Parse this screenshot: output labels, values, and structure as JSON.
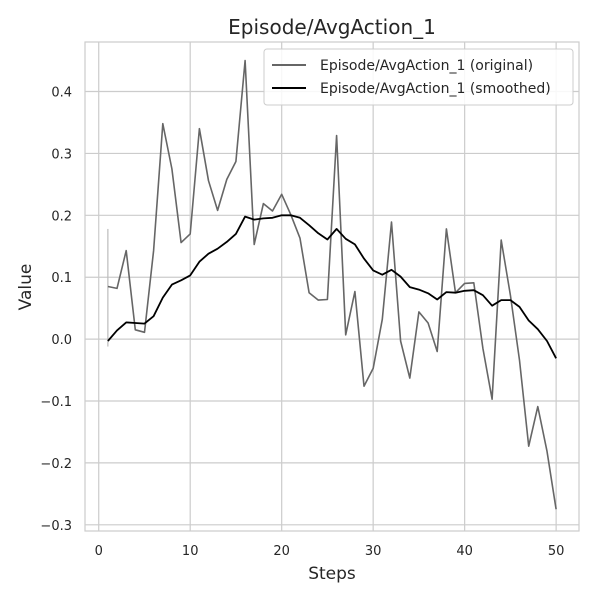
{
  "chart_data": {
    "type": "line",
    "title": "Episode/AvgAction_1",
    "xlabel": "Steps",
    "ylabel": "Value",
    "xlim": [
      -1.5,
      52.5
    ],
    "ylim": [
      -0.31,
      0.48
    ],
    "xticks": [
      0,
      10,
      20,
      30,
      40,
      50
    ],
    "yticks": [
      -0.3,
      -0.2,
      -0.1,
      0.0,
      0.1,
      0.2,
      0.3,
      0.4
    ],
    "ytick_labels": [
      "−0.3",
      "−0.2",
      "−0.1",
      "0.0",
      "0.1",
      "0.2",
      "0.3",
      "0.4"
    ],
    "xtick_labels": [
      "0",
      "10",
      "20",
      "30",
      "40",
      "50"
    ],
    "grid": true,
    "legend_position": "top-right",
    "x": [
      1,
      2,
      3,
      4,
      5,
      6,
      7,
      8,
      9,
      10,
      11,
      12,
      13,
      14,
      15,
      16,
      17,
      18,
      19,
      20,
      21,
      22,
      23,
      24,
      25,
      26,
      27,
      28,
      29,
      30,
      31,
      32,
      33,
      34,
      35,
      36,
      37,
      38,
      39,
      40,
      41,
      42,
      43,
      44,
      45,
      46,
      47,
      48,
      49,
      50
    ],
    "series": [
      {
        "name": "Episode/AvgAction_1 (original)",
        "color": "#666666",
        "values": [
          0.085,
          0.082,
          0.143,
          0.015,
          0.011,
          0.143,
          0.348,
          0.275,
          0.156,
          0.17,
          0.34,
          0.256,
          0.208,
          0.258,
          0.287,
          0.45,
          0.153,
          0.219,
          0.207,
          0.234,
          0.201,
          0.163,
          0.075,
          0.063,
          0.064,
          0.329,
          0.007,
          0.077,
          -0.076,
          -0.047,
          0.032,
          0.189,
          -0.003,
          -0.063,
          0.044,
          0.026,
          -0.02,
          0.178,
          0.075,
          0.09,
          0.091,
          -0.015,
          -0.097,
          0.16,
          0.071,
          -0.034,
          -0.173,
          -0.109,
          -0.181,
          -0.275
        ]
      },
      {
        "name": "Episode/AvgAction_1 (smoothed)",
        "color": "#000000",
        "values": [
          -0.003,
          0.014,
          0.027,
          0.026,
          0.025,
          0.037,
          0.067,
          0.088,
          0.095,
          0.103,
          0.125,
          0.138,
          0.146,
          0.157,
          0.17,
          0.198,
          0.193,
          0.195,
          0.196,
          0.2,
          0.2,
          0.196,
          0.184,
          0.171,
          0.161,
          0.178,
          0.162,
          0.153,
          0.13,
          0.111,
          0.104,
          0.112,
          0.101,
          0.084,
          0.08,
          0.074,
          0.064,
          0.076,
          0.075,
          0.078,
          0.079,
          0.071,
          0.054,
          0.063,
          0.063,
          0.052,
          0.03,
          0.016,
          -0.003,
          -0.031
        ]
      }
    ],
    "extra_marks": {
      "color": "#bbbbbb",
      "segments": [
        {
          "x": 1,
          "y1": -0.012,
          "y2": 0.178
        }
      ]
    }
  }
}
